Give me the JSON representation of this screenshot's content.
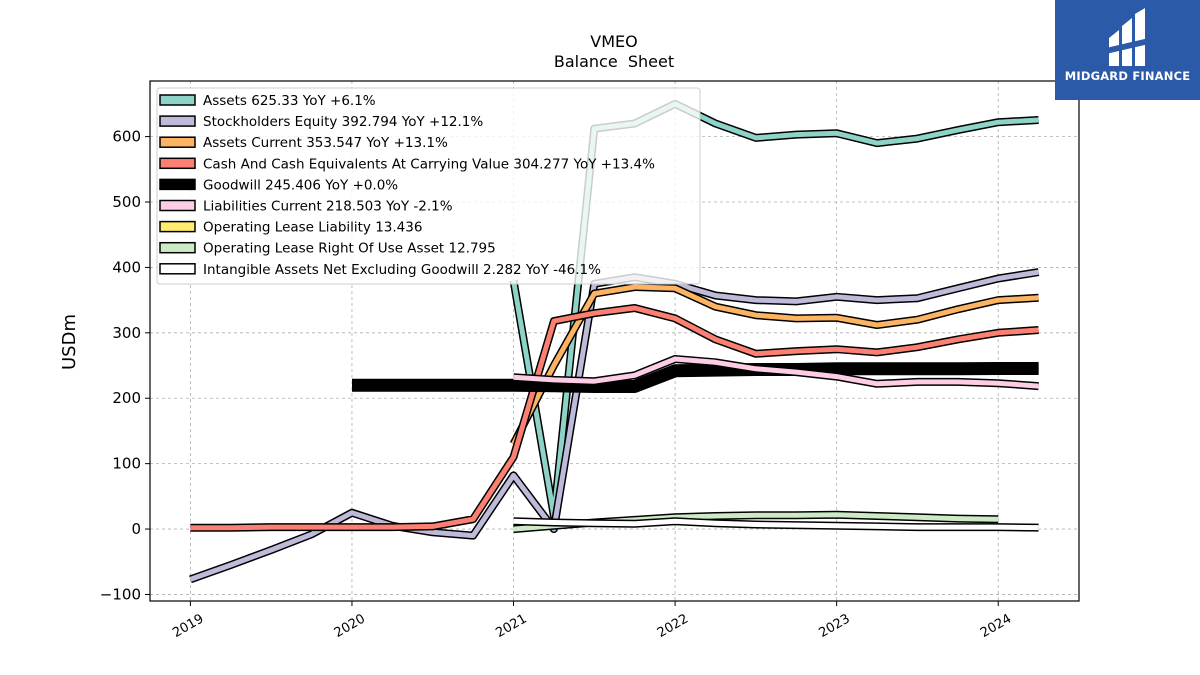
{
  "logo": {
    "name": "MIDGARD FINANCE"
  },
  "chart_data": {
    "type": "line",
    "title": "VMEO",
    "subtitle": "Balance  Sheet",
    "ylabel": "USDm",
    "xlabel": "",
    "ylim": [
      -110,
      685
    ],
    "xlim": [
      2018.75,
      2024.5
    ],
    "yticks": [
      -100,
      0,
      100,
      200,
      300,
      400,
      500,
      600
    ],
    "ytick_labels": [
      "−100",
      "0",
      "100",
      "200",
      "300",
      "400",
      "500",
      "600"
    ],
    "xticks": [
      2019,
      2020,
      2021,
      2022,
      2023,
      2024
    ],
    "xtick_labels": [
      "2019",
      "2020",
      "2021",
      "2022",
      "2023",
      "2024"
    ],
    "grid": true,
    "legend_position": "top-left",
    "series": [
      {
        "name": "Assets",
        "legend": "Assets  625.33 YoY +6.1%",
        "color": "#8dd3c7",
        "width": 5,
        "points": [
          [
            2021.0,
            380
          ],
          [
            2021.25,
            20
          ],
          [
            2021.5,
            612
          ],
          [
            2021.75,
            620
          ],
          [
            2022.0,
            650
          ],
          [
            2022.25,
            620
          ],
          [
            2022.5,
            598
          ],
          [
            2022.75,
            603
          ],
          [
            2023.0,
            605
          ],
          [
            2023.25,
            590
          ],
          [
            2023.5,
            597
          ],
          [
            2023.75,
            610
          ],
          [
            2024.0,
            622
          ],
          [
            2024.25,
            625.33
          ]
        ]
      },
      {
        "name": "Stockholders Equity",
        "legend": "Stockholders Equity  392.794 YoY +12.1%",
        "color": "#bebada",
        "width": 5,
        "points": [
          [
            2019.0,
            -77
          ],
          [
            2019.25,
            -55
          ],
          [
            2019.5,
            -32
          ],
          [
            2019.75,
            -8
          ],
          [
            2020.0,
            25
          ],
          [
            2020.25,
            5
          ],
          [
            2020.5,
            -5
          ],
          [
            2020.75,
            -10
          ],
          [
            2021.0,
            82
          ],
          [
            2021.25,
            0
          ],
          [
            2021.5,
            375
          ],
          [
            2021.75,
            385
          ],
          [
            2022.0,
            375
          ],
          [
            2022.25,
            357
          ],
          [
            2022.5,
            350
          ],
          [
            2022.75,
            348
          ],
          [
            2023.0,
            355
          ],
          [
            2023.25,
            350
          ],
          [
            2023.5,
            353
          ],
          [
            2023.75,
            368
          ],
          [
            2024.0,
            383
          ],
          [
            2024.25,
            392.794
          ]
        ]
      },
      {
        "name": "Assets Current",
        "legend": "Assets Current  353.547 YoY +13.1%",
        "color": "#fdb462",
        "width": 5,
        "points": [
          [
            2021.0,
            130
          ],
          [
            2021.25,
            250
          ],
          [
            2021.5,
            360
          ],
          [
            2021.75,
            370
          ],
          [
            2022.0,
            368
          ],
          [
            2022.25,
            340
          ],
          [
            2022.5,
            327
          ],
          [
            2022.75,
            322
          ],
          [
            2023.0,
            323
          ],
          [
            2023.25,
            312
          ],
          [
            2023.5,
            320
          ],
          [
            2023.75,
            336
          ],
          [
            2024.0,
            350
          ],
          [
            2024.25,
            353.547
          ]
        ]
      },
      {
        "name": "Cash And Cash Equivalents At Carrying Value",
        "legend": "Cash And Cash Equivalents At Carrying Value  304.277 YoY +13.4%",
        "color": "#fb8072",
        "width": 5,
        "points": [
          [
            2019.0,
            2
          ],
          [
            2019.25,
            2
          ],
          [
            2019.5,
            3
          ],
          [
            2019.75,
            3
          ],
          [
            2020.0,
            3
          ],
          [
            2020.25,
            3
          ],
          [
            2020.5,
            4
          ],
          [
            2020.75,
            15
          ],
          [
            2021.0,
            110
          ],
          [
            2021.25,
            318
          ],
          [
            2021.5,
            330
          ],
          [
            2021.75,
            338
          ],
          [
            2022.0,
            322
          ],
          [
            2022.25,
            290
          ],
          [
            2022.5,
            268
          ],
          [
            2022.75,
            272
          ],
          [
            2023.0,
            275
          ],
          [
            2023.25,
            270
          ],
          [
            2023.5,
            278
          ],
          [
            2023.75,
            290
          ],
          [
            2024.0,
            300
          ],
          [
            2024.25,
            304.277
          ]
        ]
      },
      {
        "name": "Goodwill",
        "legend": "Goodwill  245.406 YoY +0.0%",
        "color": "#000000",
        "width": 10,
        "points": [
          [
            2020.0,
            220
          ],
          [
            2020.25,
            220
          ],
          [
            2020.5,
            220
          ],
          [
            2020.75,
            220
          ],
          [
            2021.0,
            220
          ],
          [
            2021.25,
            219
          ],
          [
            2021.5,
            218
          ],
          [
            2021.75,
            218
          ],
          [
            2022.0,
            242
          ],
          [
            2022.25,
            243
          ],
          [
            2022.5,
            244
          ],
          [
            2022.75,
            244
          ],
          [
            2023.0,
            245
          ],
          [
            2023.25,
            245
          ],
          [
            2023.5,
            245
          ],
          [
            2023.75,
            245
          ],
          [
            2024.0,
            245.406
          ],
          [
            2024.25,
            245.406
          ]
        ]
      },
      {
        "name": "Liabilities Current",
        "legend": "Liabilities Current  218.503 YoY -2.1%",
        "color": "#fccde5",
        "width": 5,
        "points": [
          [
            2021.0,
            232
          ],
          [
            2021.25,
            228
          ],
          [
            2021.5,
            226
          ],
          [
            2021.75,
            235
          ],
          [
            2022.0,
            260
          ],
          [
            2022.25,
            255
          ],
          [
            2022.5,
            245
          ],
          [
            2022.75,
            240
          ],
          [
            2023.0,
            233
          ],
          [
            2023.25,
            222
          ],
          [
            2023.5,
            225
          ],
          [
            2023.75,
            225
          ],
          [
            2024.0,
            223
          ],
          [
            2024.25,
            218.503
          ]
        ]
      },
      {
        "name": "Operating Lease Liability",
        "legend": "Operating Lease Liability  13.436",
        "color": "#ffed6f",
        "width": 4,
        "points": []
      },
      {
        "name": "Operating Lease Right Of Use Asset",
        "legend": "Operating Lease Right Of Use Asset  12.795",
        "color": "#ccebc5",
        "width": 5,
        "points": [
          [
            2021.0,
            0
          ],
          [
            2021.25,
            5
          ],
          [
            2021.5,
            10
          ],
          [
            2021.75,
            14
          ],
          [
            2022.0,
            18
          ],
          [
            2022.25,
            20
          ],
          [
            2022.5,
            21
          ],
          [
            2022.75,
            21
          ],
          [
            2023.0,
            22
          ],
          [
            2023.25,
            20
          ],
          [
            2023.5,
            18
          ],
          [
            2023.75,
            16
          ],
          [
            2024.0,
            15
          ]
        ]
      },
      {
        "name": "Intangible Assets Net Excluding Goodwill",
        "legend": "Intangible Assets Net Excluding Goodwill  2.282 YoY -46.1%",
        "color": "#ffffff",
        "width": 5,
        "points": [
          [
            2021.0,
            12
          ],
          [
            2021.25,
            10
          ],
          [
            2021.5,
            9
          ],
          [
            2021.75,
            8
          ],
          [
            2022.0,
            12
          ],
          [
            2022.25,
            9
          ],
          [
            2022.5,
            7
          ],
          [
            2022.75,
            6
          ],
          [
            2023.0,
            5
          ],
          [
            2023.25,
            4
          ],
          [
            2023.5,
            3
          ],
          [
            2023.75,
            3
          ],
          [
            2024.0,
            3
          ],
          [
            2024.25,
            2.282
          ]
        ]
      }
    ]
  }
}
